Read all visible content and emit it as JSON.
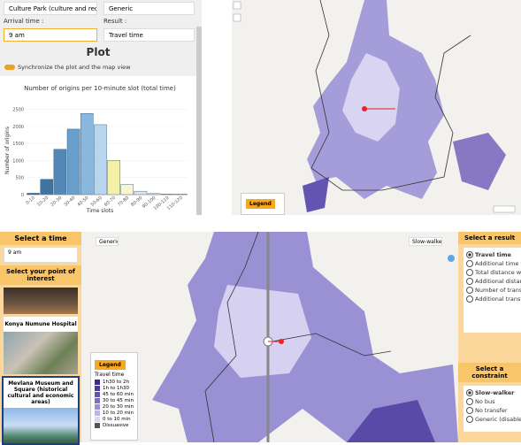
{
  "top_panel": {
    "origin": "Culture Park (culture and recreation",
    "profile": "Generic",
    "arrival_label": "Arrival time :",
    "arrival": "9 am",
    "result_label": "Result :",
    "result": "Travel time",
    "section_title": "Plot",
    "sync_label": "Synchronize the plot and the map view",
    "map_legend": "Legend"
  },
  "histogram": {
    "type": "bar",
    "title": "Number of origins per 10-minute slot (total time)",
    "y_label": "Number of origins",
    "x_label": "Time slots",
    "categories": [
      "0-10",
      "10-20",
      "20-30",
      "30-40",
      "40-50",
      "50-60",
      "60-70",
      "70-80",
      "80-90",
      "90-100",
      "100-110",
      "110-120"
    ],
    "values": [
      40,
      450,
      1330,
      1920,
      2380,
      2050,
      1000,
      300,
      100,
      30,
      20,
      15
    ],
    "colors": [
      "#2f5f8c",
      "#3f73a3",
      "#5288b8",
      "#6a9ecb",
      "#89b7dd",
      "#b8d5ee",
      "#f3f0a8",
      "#f7f6cf",
      "#e2e2e2",
      "#e2e2e2",
      "#e2e2e2",
      "#e2e2e2"
    ],
    "ylim": [
      0,
      2800
    ],
    "yticks": [
      0,
      500,
      1000,
      1500,
      2000,
      2500
    ]
  },
  "bottom_panel": {
    "time_title": "Select a time",
    "time_value": "9 am",
    "poi_title": "Select your point of interest",
    "poi": [
      "Konya Numune Hospital",
      "Mevlana Museum and Square (historical cultural and economic areas)"
    ],
    "map_left_tag": "Generic",
    "map_right_tag": "Slow-walker",
    "legend_title": "Legend",
    "legend_subtitle": "Travel time",
    "legend_items": [
      {
        "label": "1h30 to 2h",
        "color": "#3b2a86"
      },
      {
        "label": "1h to 1h30",
        "color": "#4b3a9a"
      },
      {
        "label": "45 to 60 min",
        "color": "#6352b0"
      },
      {
        "label": "30 to 45 min",
        "color": "#7d6ec4"
      },
      {
        "label": "20 to 30 min",
        "color": "#9b90d6"
      },
      {
        "label": "10 to 20 min",
        "color": "#bcb4e6"
      },
      {
        "label": "0 to 10 min",
        "color": "#dcd8f3"
      },
      {
        "label": "Dissuasive",
        "color": "#555555"
      }
    ],
    "result_title": "Select a result",
    "results": [
      "Travel time",
      "Additional time",
      "Total distance walked",
      "Additional distance walked",
      "Number of transfers",
      "Additional transfers"
    ],
    "constraint_title": "Select a constraint",
    "constraints": [
      "Slow-walker",
      "No bus",
      "No transfer",
      "Generic (disabled)"
    ]
  }
}
